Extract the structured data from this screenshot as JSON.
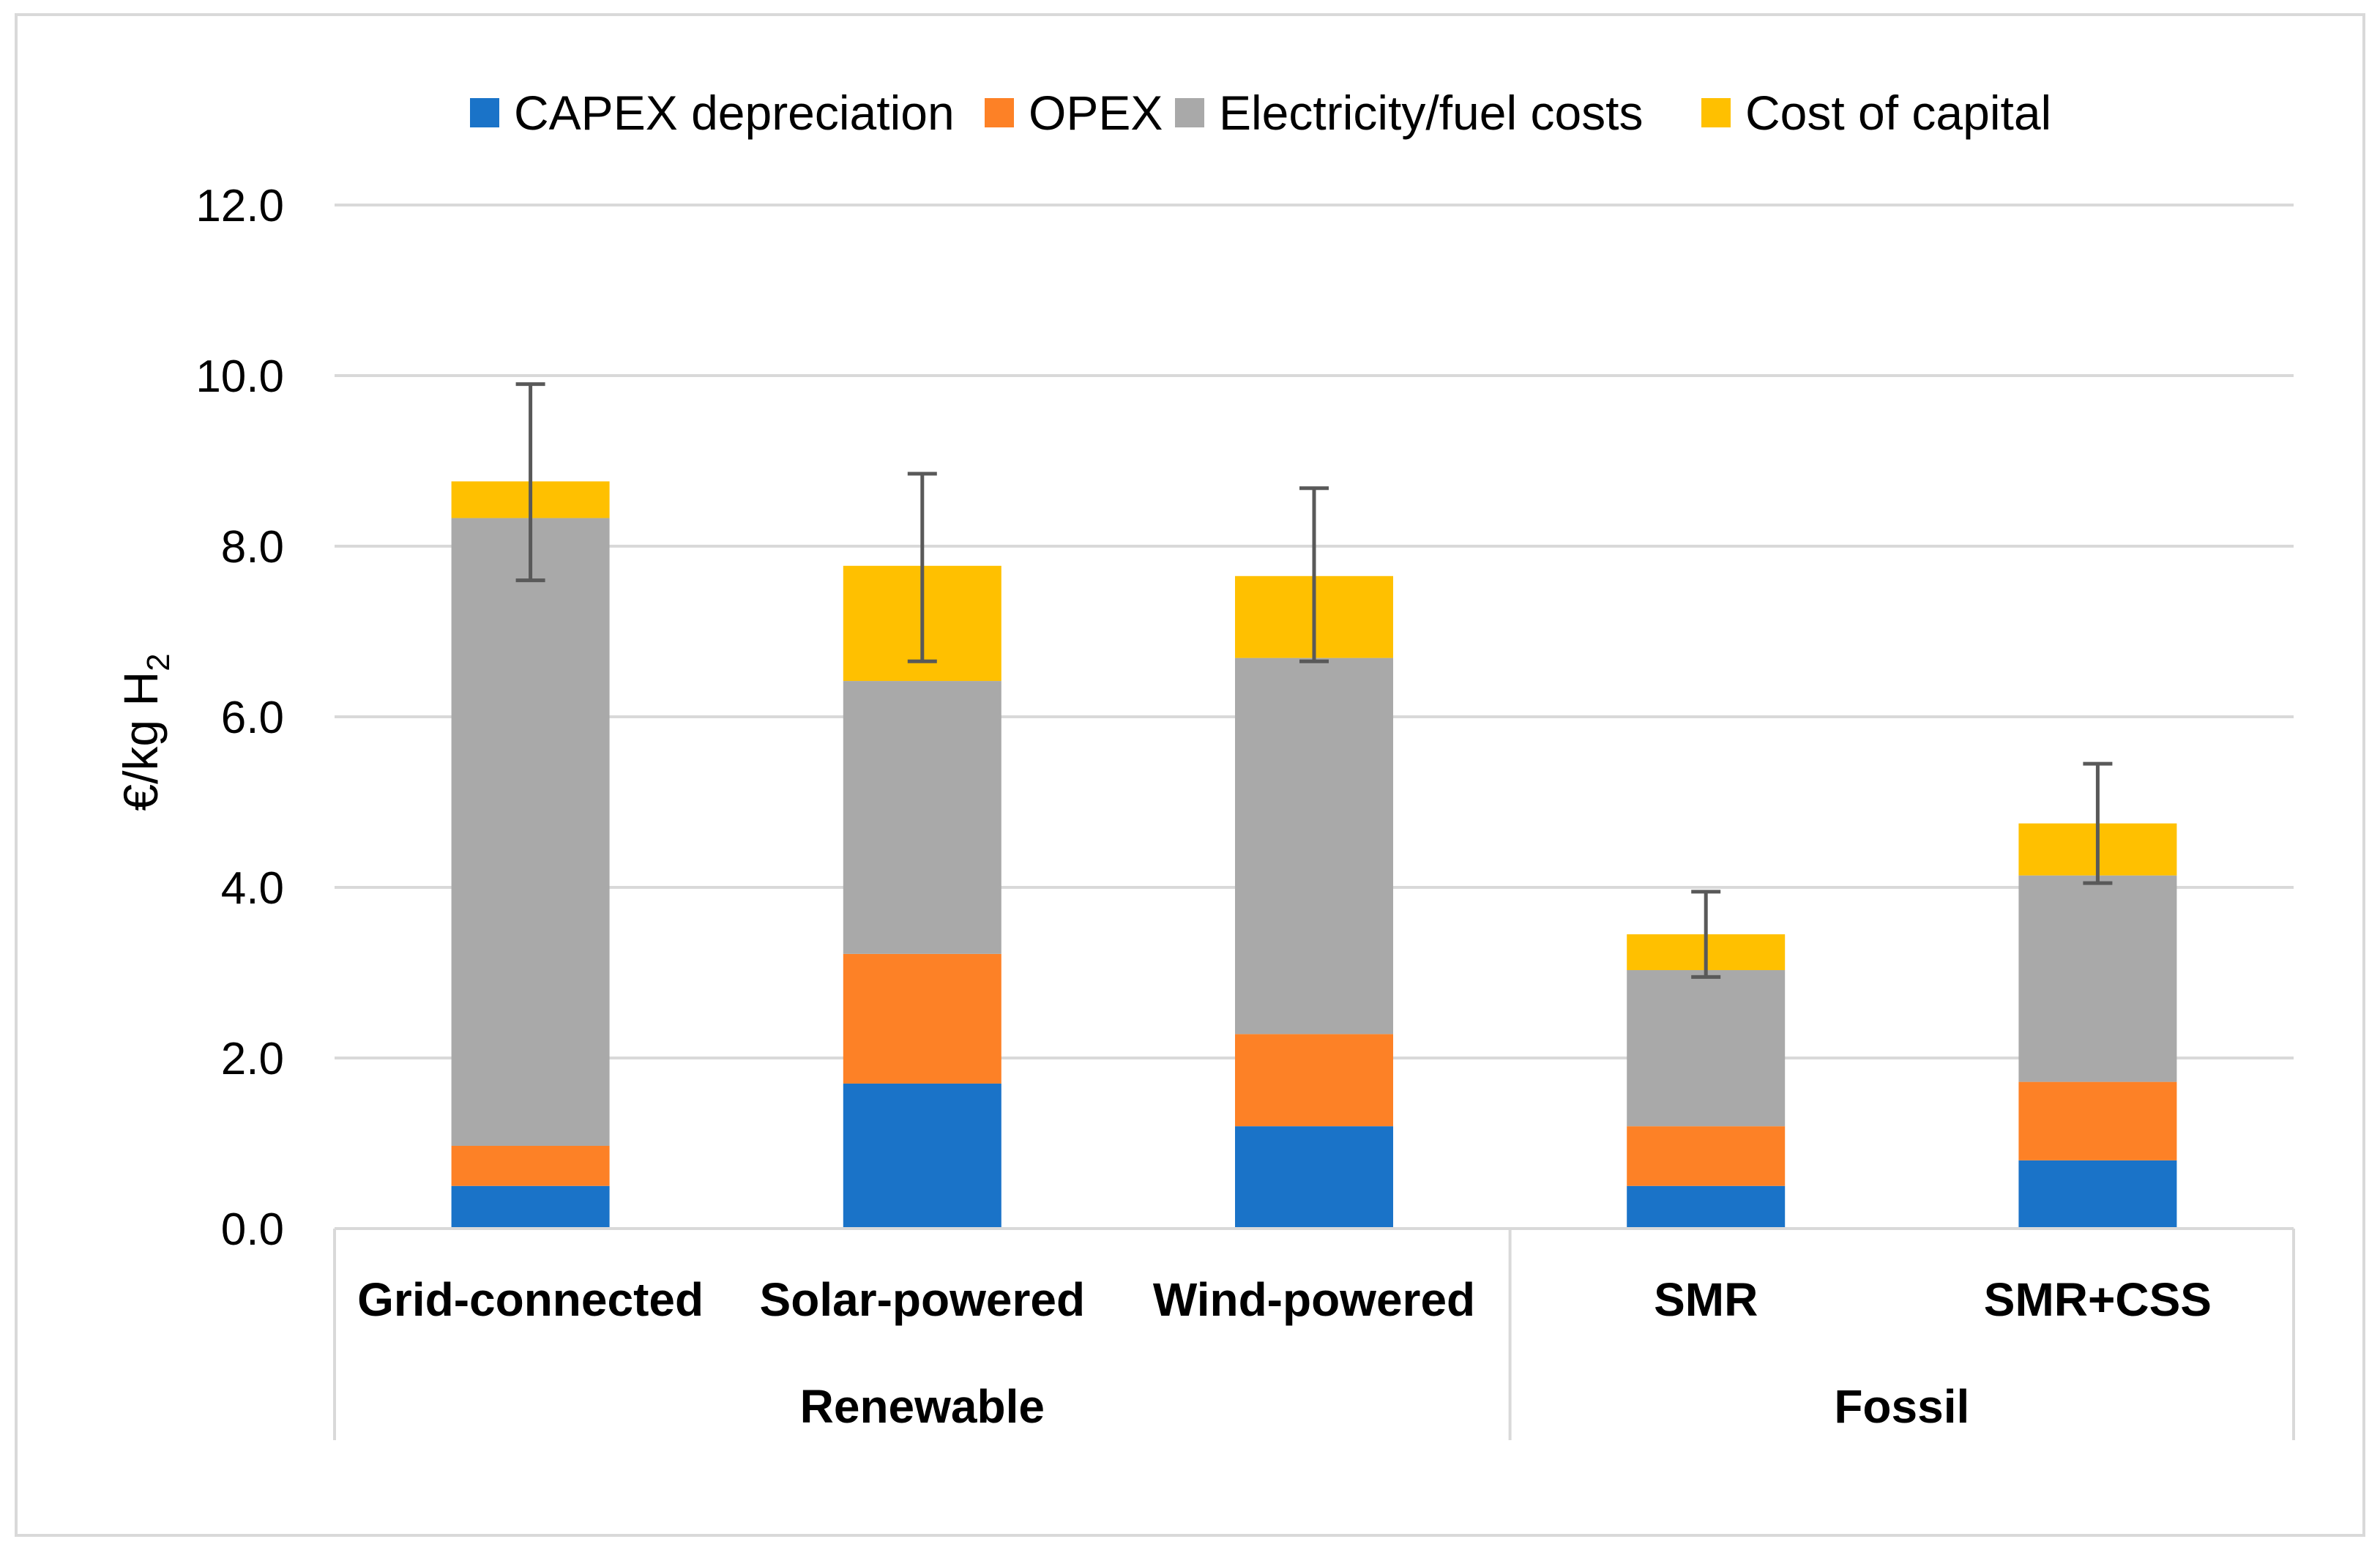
{
  "chart_data": {
    "type": "bar",
    "stacked": true,
    "ylabel": "€/kg H",
    "ylabel_subscript": "2",
    "ylim": [
      0,
      12
    ],
    "yticks": [
      "0.0",
      "2.0",
      "4.0",
      "6.0",
      "8.0",
      "10.0",
      "12.0"
    ],
    "grid": true,
    "legend_position": "top",
    "categories": [
      "Grid-connected",
      "Solar-powered",
      "Wind-powered",
      "SMR",
      "SMR+CSS"
    ],
    "groups": [
      {
        "label": "Renewable",
        "categories": [
          "Grid-connected",
          "Solar-powered",
          "Wind-powered"
        ]
      },
      {
        "label": "Fossil",
        "categories": [
          "SMR",
          "SMR+CSS"
        ]
      }
    ],
    "series": [
      {
        "name": "CAPEX depreciation",
        "color": "#1a73c8",
        "values": [
          0.5,
          1.7,
          1.2,
          0.5,
          0.8
        ]
      },
      {
        "name": "OPEX",
        "color": "#fd8126",
        "values": [
          0.47,
          1.52,
          1.08,
          0.7,
          0.92
        ]
      },
      {
        "name": "Electricity/fuel costs",
        "color": "#a9a9a9",
        "values": [
          7.36,
          3.2,
          4.41,
          1.83,
          2.42
        ]
      },
      {
        "name": "Cost of capital",
        "color": "#ffc000",
        "values": [
          0.43,
          1.35,
          0.96,
          0.42,
          0.61
        ]
      }
    ],
    "error_bars": [
      {
        "low": 7.6,
        "high": 9.9
      },
      {
        "low": 6.65,
        "high": 8.85
      },
      {
        "low": 6.65,
        "high": 8.68
      },
      {
        "low": 2.95,
        "high": 3.95
      },
      {
        "low": 4.05,
        "high": 5.45
      }
    ]
  }
}
